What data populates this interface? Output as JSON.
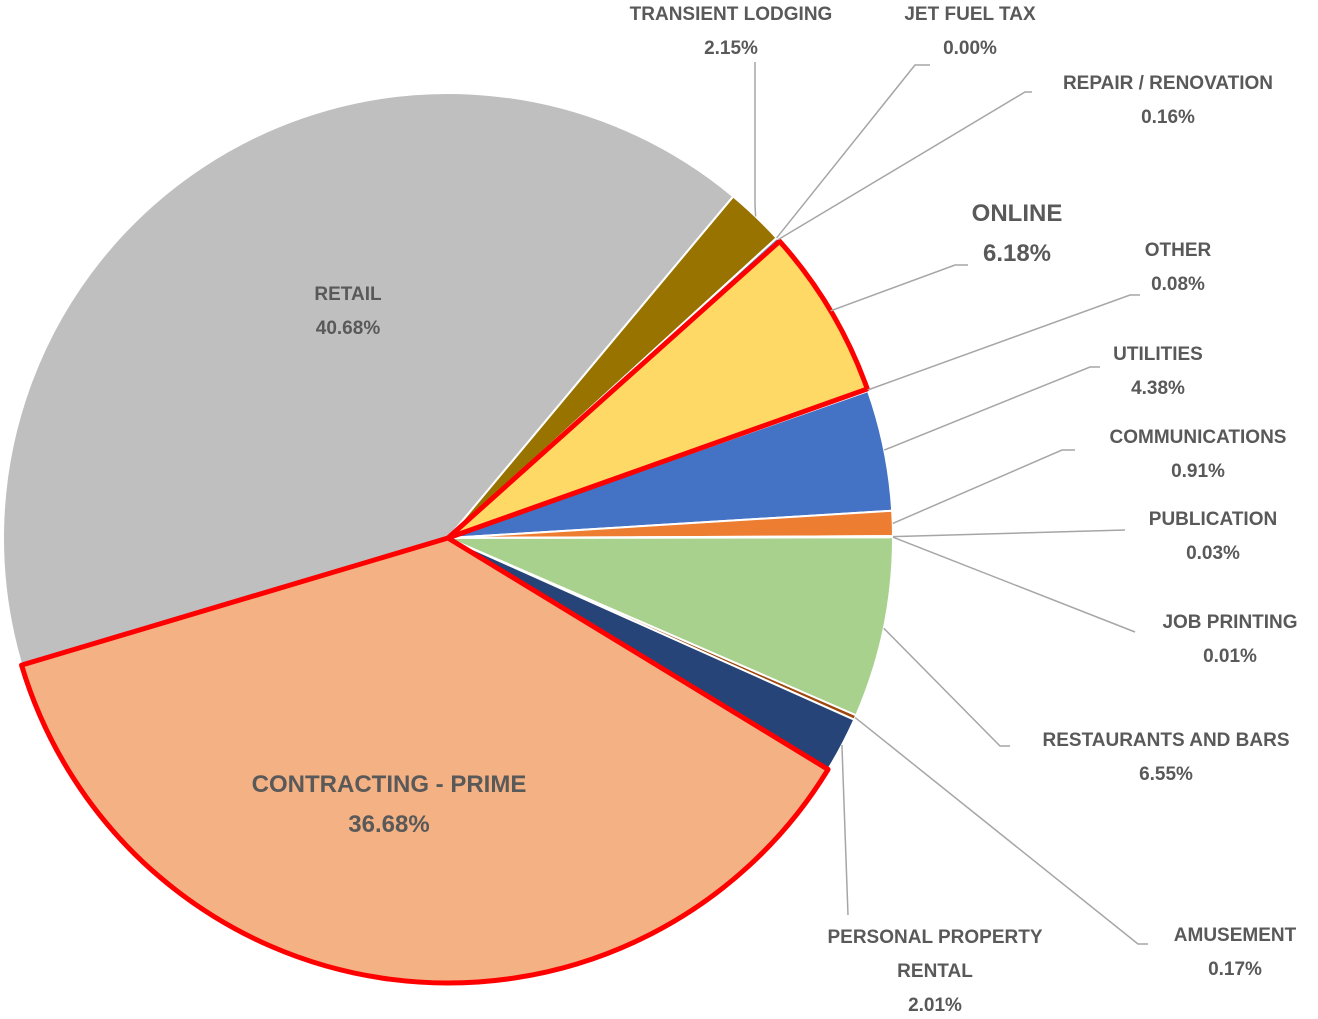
{
  "chart_data": {
    "type": "pie",
    "categories": [
      "RETAIL",
      "TRANSIENT LODGING",
      "JET FUEL TAX",
      "REPAIR / RENOVATION",
      "ONLINE",
      "OTHER",
      "UTILITIES",
      "COMMUNICATIONS",
      "PUBLICATION",
      "JOB PRINTING",
      "RESTAURANTS AND BARS",
      "AMUSEMENT",
      "PERSONAL PROPERTY RENTAL",
      "CONTRACTING - PRIME"
    ],
    "values": [
      40.68,
      2.15,
      0.0,
      0.16,
      6.18,
      0.08,
      4.38,
      0.91,
      0.03,
      0.01,
      6.55,
      0.17,
      2.01,
      36.68
    ],
    "value_labels": [
      "40.68%",
      "2.15%",
      "0.00%",
      "0.16%",
      "6.18%",
      "0.08%",
      "4.38%",
      "0.91%",
      "0.03%",
      "0.01%",
      "6.55%",
      "0.17%",
      "2.01%",
      "36.68%"
    ],
    "colors": [
      "#bfbfbf",
      "#997300",
      "#7f6000",
      "#5b9bd5",
      "#ffd966",
      "#a5a5a5",
      "#4472c4",
      "#ed7d31",
      "#a5a5a5",
      "#ffc000",
      "#a9d18e",
      "#9e480e",
      "#264478",
      "#f4b183"
    ],
    "edgecolors": [
      "#ffffff",
      "#ffffff",
      "#ffffff",
      "#ffffff",
      "#ff0000",
      "#ffffff",
      "#ffffff",
      "#ffffff",
      "#ffffff",
      "#ffffff",
      "#ffffff",
      "#ffffff",
      "#ffffff",
      "#ff0000"
    ]
  }
}
